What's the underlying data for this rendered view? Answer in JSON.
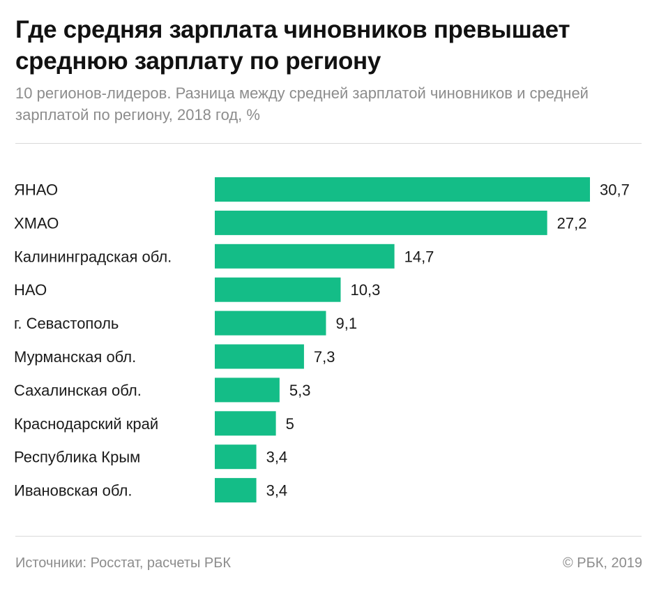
{
  "chart_data": {
    "type": "bar",
    "orientation": "horizontal",
    "title": "Где средняя зарплата чиновников превышает среднюю зарплату по региону",
    "subtitle": "10 регионов-лидеров. Разница между средней зарплатой чиновников и средней зарплатой по региону, 2018 год, %",
    "categories": [
      "ЯНАО",
      "ХМАО",
      "Калининградская обл.",
      "НАО",
      "г. Севастополь",
      "Мурманская обл.",
      "Сахалинская обл.",
      "Краснодарский край",
      "Республика Крым",
      "Ивановская обл."
    ],
    "values": [
      30.7,
      27.2,
      14.7,
      10.3,
      9.1,
      7.3,
      5.3,
      5,
      3.4,
      3.4
    ],
    "value_labels": [
      "30,7",
      "27,2",
      "14,7",
      "10,3",
      "9,1",
      "7,3",
      "5,3",
      "5",
      "3,4",
      "3,4"
    ],
    "xlim": [
      0,
      30.7
    ],
    "grid": false,
    "legend": "none",
    "bar_color": "#14bd87"
  },
  "footer": {
    "source": "Источники: Росстат, расчеты РБК",
    "copyright": "© РБК, 2019"
  }
}
